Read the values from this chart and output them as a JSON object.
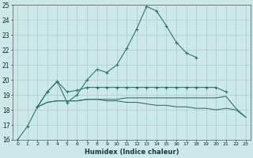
{
  "xlabel": "Humidex (Indice chaleur)",
  "ylabel": "",
  "x": [
    0,
    1,
    2,
    3,
    4,
    5,
    6,
    7,
    8,
    9,
    10,
    11,
    12,
    13,
    14,
    15,
    16,
    17,
    18,
    19,
    20,
    21,
    22,
    23
  ],
  "line1": [
    16.0,
    16.9,
    18.2,
    19.2,
    19.9,
    18.5,
    19.0,
    20.0,
    20.7,
    20.5,
    21.0,
    22.1,
    23.4,
    24.9,
    24.6,
    23.6,
    22.5,
    21.8,
    21.5,
    null,
    null,
    null,
    null,
    null
  ],
  "line2": [
    null,
    null,
    18.2,
    19.2,
    19.9,
    19.2,
    19.3,
    19.5,
    19.5,
    19.5,
    19.5,
    19.5,
    19.5,
    19.5,
    19.5,
    19.5,
    19.5,
    19.5,
    19.5,
    19.5,
    19.5,
    19.2,
    null,
    null
  ],
  "line3": [
    null,
    null,
    18.2,
    18.5,
    18.6,
    18.6,
    18.6,
    18.7,
    18.7,
    18.6,
    18.6,
    18.5,
    18.5,
    18.4,
    18.3,
    18.3,
    18.2,
    18.2,
    18.1,
    18.1,
    18.0,
    18.1,
    18.0,
    17.5
  ],
  "line4": [
    null,
    null,
    18.2,
    18.5,
    18.6,
    18.6,
    18.6,
    18.7,
    18.7,
    18.7,
    18.7,
    18.8,
    18.8,
    18.8,
    18.8,
    18.8,
    18.8,
    18.8,
    18.8,
    18.8,
    18.8,
    18.9,
    18.1,
    17.5
  ],
  "line_color": "#2a7a6a",
  "bg_color": "#cce8e8",
  "grid_color": "#aacccc",
  "ylim": [
    16,
    25
  ],
  "yticks": [
    16,
    17,
    18,
    19,
    20,
    21,
    22,
    23,
    24,
    25
  ],
  "xticks": [
    0,
    1,
    2,
    3,
    4,
    5,
    6,
    7,
    8,
    9,
    10,
    11,
    12,
    13,
    14,
    15,
    16,
    17,
    18,
    19,
    20,
    21,
    22,
    23
  ]
}
